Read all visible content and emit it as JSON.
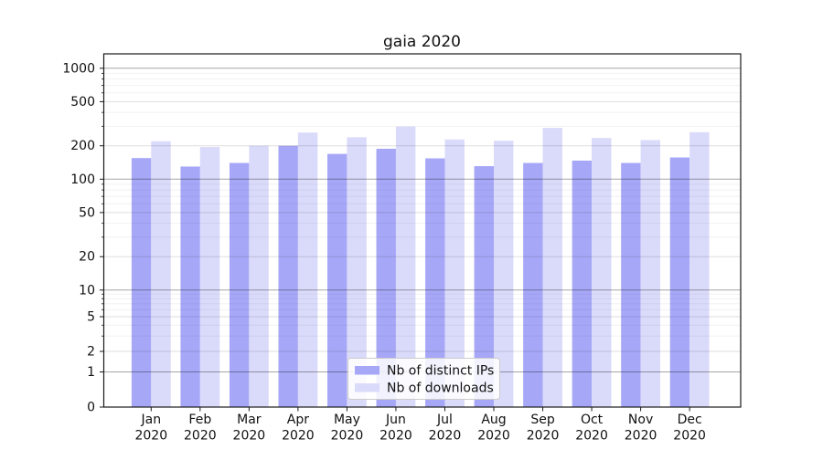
{
  "chart_data": {
    "type": "bar",
    "title": "gaia 2020",
    "categories": [
      "Jan 2020",
      "Feb 2020",
      "Mar 2020",
      "Apr 2020",
      "May 2020",
      "Jun 2020",
      "Jul 2020",
      "Aug 2020",
      "Sep 2020",
      "Oct 2020",
      "Nov 2020",
      "Dec 2020"
    ],
    "x_tick_line1": [
      "Jan",
      "Feb",
      "Mar",
      "Apr",
      "May",
      "Jun",
      "Jul",
      "Aug",
      "Sep",
      "Oct",
      "Nov",
      "Dec"
    ],
    "x_tick_line2": "2020",
    "series": [
      {
        "name": "Nb of distinct IPs",
        "color": "#a7a7f8",
        "values": [
          155,
          130,
          140,
          200,
          169,
          188,
          154,
          131,
          140,
          147,
          140,
          157
        ]
      },
      {
        "name": "Nb of downloads",
        "color": "#dadafa",
        "values": [
          220,
          195,
          200,
          263,
          239,
          298,
          228,
          222,
          290,
          235,
          225,
          265
        ]
      }
    ],
    "xlabel": "",
    "ylabel": "",
    "yscale": "symlog",
    "ylim": [
      0,
      1340
    ],
    "yticks_labeled": [
      0,
      1,
      2,
      5,
      10,
      20,
      50,
      100,
      200,
      500,
      1000
    ],
    "yticks_decade": [
      1,
      10,
      100,
      1000
    ],
    "yticks_mid": [
      2,
      5,
      20,
      50,
      200,
      500
    ],
    "yticks_minor": [
      3,
      4,
      6,
      7,
      8,
      9,
      30,
      40,
      60,
      70,
      80,
      90,
      300,
      400,
      600,
      700,
      800,
      900
    ],
    "grid": true,
    "legend": {
      "position": "lower center",
      "entries": [
        "Nb of distinct IPs",
        "Nb of downloads"
      ]
    }
  }
}
